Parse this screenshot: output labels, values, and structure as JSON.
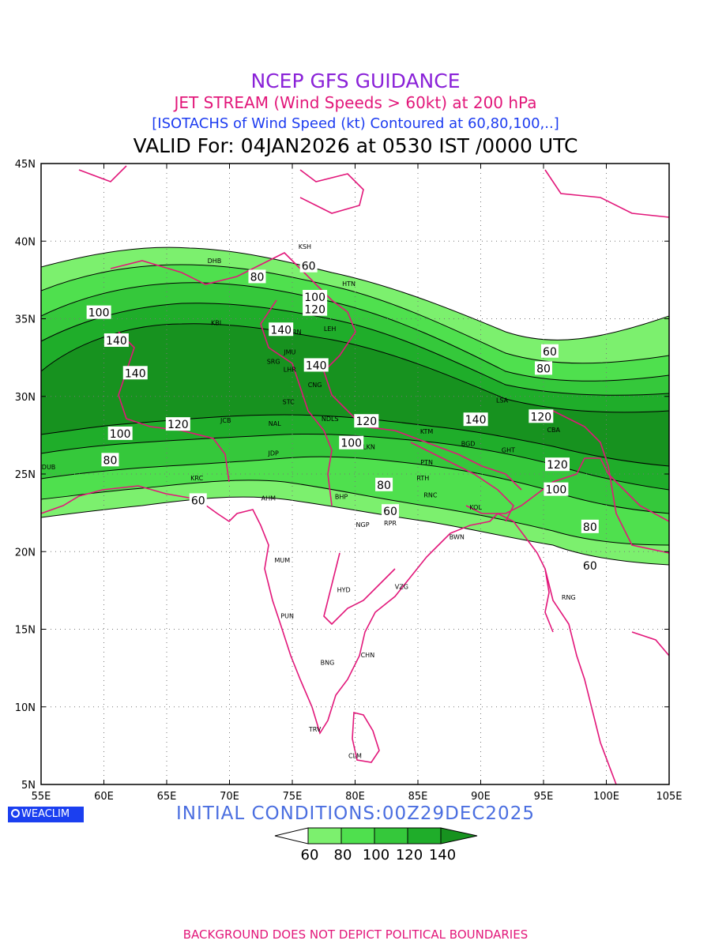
{
  "header": {
    "line1": "NCEP GFS GUIDANCE",
    "line2": "JET STREAM (Wind Speeds > 60kt) at 200 hPa",
    "line3": "[ISOTACHS of Wind Speed (kt) Contoured at 60,80,100,..]",
    "line4": "VALID For: 04JAN2026 at 0530 IST /0000 UTC"
  },
  "colors": {
    "line1": "#8a22d8",
    "line2": "#e2177a",
    "line3": "#1d3cf0",
    "coast": "#e2177a",
    "green60": "#7cf06e",
    "green80": "#4fe04e",
    "green100": "#35c83b",
    "green120": "#1fad2a",
    "green140": "#17921f",
    "init": "#4a6ee0",
    "footer": "#e2177a"
  },
  "axes": {
    "lat_labels": [
      "45N",
      "40N",
      "35N",
      "30N",
      "25N",
      "20N",
      "15N",
      "10N",
      "5N"
    ],
    "lon_labels": [
      "55E",
      "60E",
      "65E",
      "70E",
      "75E",
      "80E",
      "85E",
      "90E",
      "95E",
      "100E",
      "105E"
    ],
    "lat_range": [
      5,
      45
    ],
    "lon_range": [
      55,
      105
    ]
  },
  "chart_data": {
    "type": "heatmap",
    "title": "JET STREAM (Wind Speeds > 60kt) at 200 hPa",
    "variable": "Wind speed (kt) isotachs",
    "contour_levels": [
      60,
      80,
      100,
      120,
      140
    ],
    "isotach_labels": [
      {
        "value": "80",
        "lon": 72.2,
        "lat": 37.7
      },
      {
        "value": "60",
        "lon": 76.3,
        "lat": 38.4
      },
      {
        "value": "100",
        "lon": 59.6,
        "lat": 35.4
      },
      {
        "value": "140",
        "lon": 61.0,
        "lat": 33.6
      },
      {
        "value": "140",
        "lon": 62.5,
        "lat": 31.5
      },
      {
        "value": "140",
        "lon": 74.1,
        "lat": 34.3
      },
      {
        "value": "100",
        "lon": 76.8,
        "lat": 36.4
      },
      {
        "value": "120",
        "lon": 76.8,
        "lat": 35.6
      },
      {
        "value": "140",
        "lon": 76.9,
        "lat": 32.0
      },
      {
        "value": "120",
        "lon": 65.9,
        "lat": 28.2
      },
      {
        "value": "100",
        "lon": 61.3,
        "lat": 27.6
      },
      {
        "value": "80",
        "lon": 60.5,
        "lat": 25.9
      },
      {
        "value": "60",
        "lon": 67.5,
        "lat": 23.3
      },
      {
        "value": "100",
        "lon": 79.7,
        "lat": 27.0
      },
      {
        "value": "120",
        "lon": 80.9,
        "lat": 28.4
      },
      {
        "value": "140",
        "lon": 89.6,
        "lat": 28.5
      },
      {
        "value": "80",
        "lon": 82.3,
        "lat": 24.3
      },
      {
        "value": "60",
        "lon": 82.8,
        "lat": 22.6
      },
      {
        "value": "60",
        "lon": 95.5,
        "lat": 32.9
      },
      {
        "value": "80",
        "lon": 95.0,
        "lat": 31.8
      },
      {
        "value": "120",
        "lon": 94.8,
        "lat": 28.7
      },
      {
        "value": "120",
        "lon": 96.1,
        "lat": 25.6
      },
      {
        "value": "100",
        "lon": 96.0,
        "lat": 24.0
      },
      {
        "value": "80",
        "lon": 98.7,
        "lat": 21.6
      },
      {
        "value": "60",
        "lon": 98.7,
        "lat": 19.1
      }
    ],
    "legend": {
      "labels": [
        "60",
        "80",
        "100",
        "120",
        "140"
      ]
    }
  },
  "stations": [
    {
      "code": "KSH",
      "lon": 76.0,
      "lat": 39.5
    },
    {
      "code": "DHB",
      "lon": 68.8,
      "lat": 38.6
    },
    {
      "code": "HTN",
      "lon": 79.5,
      "lat": 37.1
    },
    {
      "code": "KBL",
      "lon": 69.0,
      "lat": 34.6
    },
    {
      "code": "SRN",
      "lon": 75.2,
      "lat": 34.0
    },
    {
      "code": "LEH",
      "lon": 78.0,
      "lat": 34.2
    },
    {
      "code": "JMU",
      "lon": 74.8,
      "lat": 32.7
    },
    {
      "code": "SRG",
      "lon": 73.5,
      "lat": 32.1
    },
    {
      "code": "LHR",
      "lon": 74.8,
      "lat": 31.6
    },
    {
      "code": "CNG",
      "lon": 76.8,
      "lat": 30.6
    },
    {
      "code": "STC",
      "lon": 74.7,
      "lat": 29.5
    },
    {
      "code": "JCB",
      "lon": 69.7,
      "lat": 28.3
    },
    {
      "code": "NAL",
      "lon": 73.6,
      "lat": 28.1
    },
    {
      "code": "NDLS",
      "lon": 78.0,
      "lat": 28.4
    },
    {
      "code": "KTM",
      "lon": 85.7,
      "lat": 27.6
    },
    {
      "code": "BGD",
      "lon": 89.0,
      "lat": 26.8
    },
    {
      "code": "LSA",
      "lon": 91.7,
      "lat": 29.6
    },
    {
      "code": "CBA",
      "lon": 95.8,
      "lat": 27.7
    },
    {
      "code": "GHT",
      "lon": 92.2,
      "lat": 26.4
    },
    {
      "code": "JDP",
      "lon": 73.5,
      "lat": 26.2
    },
    {
      "code": "LKN",
      "lon": 81.1,
      "lat": 26.6
    },
    {
      "code": "PTN",
      "lon": 85.7,
      "lat": 25.6
    },
    {
      "code": "DUB",
      "lon": 55.6,
      "lat": 25.3
    },
    {
      "code": "KRC",
      "lon": 67.4,
      "lat": 24.6
    },
    {
      "code": "RTH",
      "lon": 85.4,
      "lat": 24.6
    },
    {
      "code": "AHM",
      "lon": 73.1,
      "lat": 23.3
    },
    {
      "code": "BHP",
      "lon": 78.9,
      "lat": 23.4
    },
    {
      "code": "RNC",
      "lon": 86.0,
      "lat": 23.5
    },
    {
      "code": "KOL",
      "lon": 89.6,
      "lat": 22.7
    },
    {
      "code": "NGP",
      "lon": 80.6,
      "lat": 21.6
    },
    {
      "code": "RPR",
      "lon": 82.8,
      "lat": 21.7
    },
    {
      "code": "BWN",
      "lon": 88.1,
      "lat": 20.8
    },
    {
      "code": "MUM",
      "lon": 74.2,
      "lat": 19.3
    },
    {
      "code": "HYD",
      "lon": 79.1,
      "lat": 17.4
    },
    {
      "code": "VZG",
      "lon": 83.7,
      "lat": 17.6
    },
    {
      "code": "RNG",
      "lon": 97.0,
      "lat": 16.9
    },
    {
      "code": "PUN",
      "lon": 74.6,
      "lat": 15.7
    },
    {
      "code": "CHN",
      "lon": 81.0,
      "lat": 13.2
    },
    {
      "code": "BNG",
      "lon": 77.8,
      "lat": 12.7
    },
    {
      "code": "TRV",
      "lon": 76.8,
      "lat": 8.4
    },
    {
      "code": "CLM",
      "lon": 80.0,
      "lat": 6.7
    }
  ],
  "logo_text": "WEACLIM",
  "init_conditions": "INITIAL  CONDITIONS:00Z29DEC2025",
  "footer": "BACKGROUND DOES NOT DEPICT POLITICAL BOUNDARIES"
}
